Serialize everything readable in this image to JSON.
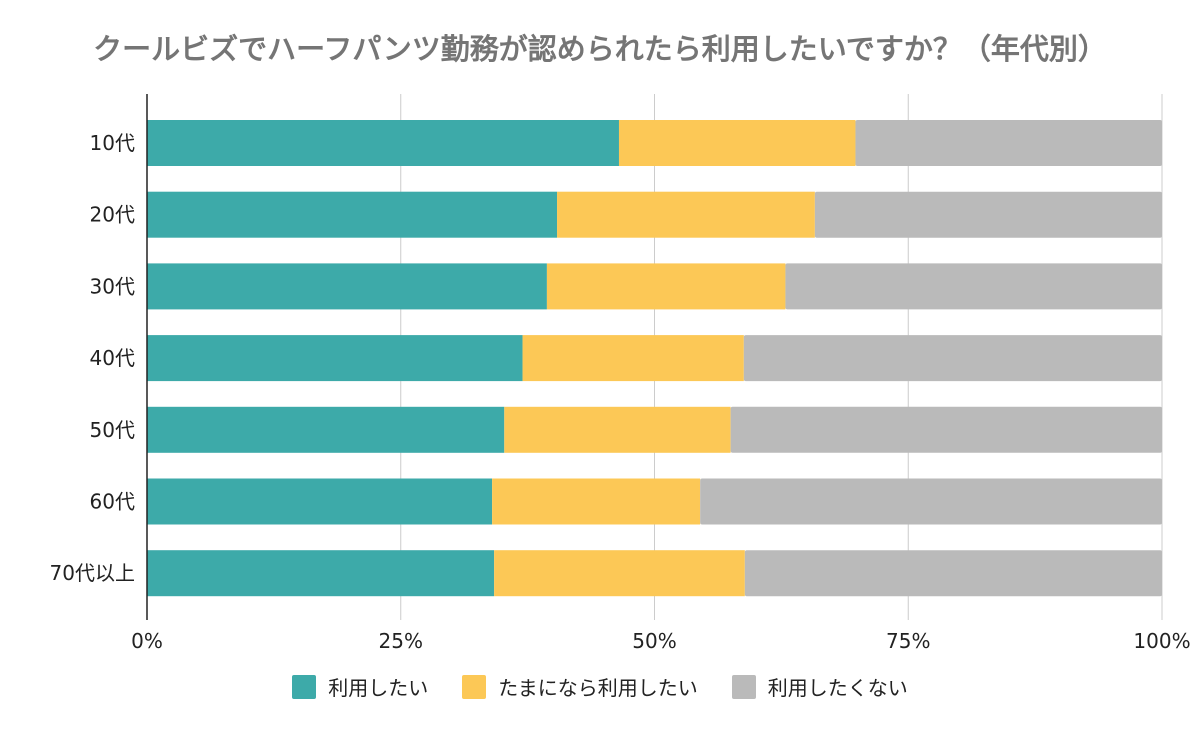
{
  "chart_data": {
    "type": "bar",
    "orientation": "horizontal",
    "stacked": "percent",
    "title": "クールビズでハーフパンツ勤務が認められたら利用したいですか？（年代別）",
    "categories": [
      "10代",
      "20代",
      "30代",
      "40代",
      "50代",
      "60代",
      "70代以上"
    ],
    "series": [
      {
        "name": "利用したい",
        "color": "#3DAAA9",
        "values": [
          46.5,
          40.4,
          39.4,
          37.0,
          35.2,
          34.0,
          34.2
        ]
      },
      {
        "name": "たまになら利用したい",
        "color": "#FCC856",
        "values": [
          23.3,
          25.4,
          23.5,
          21.8,
          22.3,
          20.5,
          24.7
        ]
      },
      {
        "name": "利用したくない",
        "color": "#BABABA",
        "values": [
          30.2,
          34.2,
          37.1,
          41.2,
          42.5,
          45.5,
          41.1
        ]
      }
    ],
    "x_ticks": [
      "0%",
      "25%",
      "50%",
      "75%",
      "100%"
    ],
    "xlim": [
      0,
      100
    ],
    "grid": true,
    "legend_position": "bottom"
  }
}
